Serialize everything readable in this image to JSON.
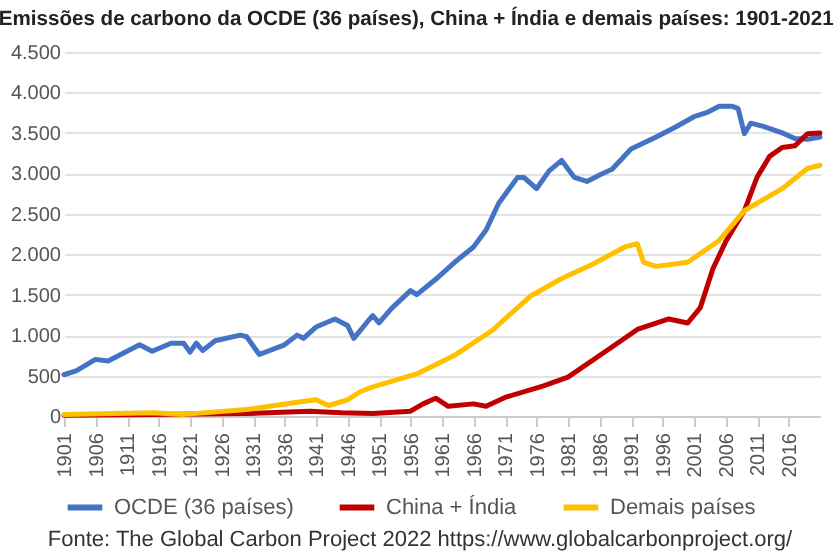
{
  "chart_data": {
    "type": "line",
    "title": "Emissões de carbono da OCDE (36 países), China + Índia e demais países: 1901-2021",
    "annotations": [
      "Fonte: The Global Carbon Project 2022 https://www.globalcarbonproject.org/"
    ],
    "xlim": [
      1901,
      2021
    ],
    "xticks": [
      1901,
      1906,
      1911,
      1916,
      1921,
      1926,
      1931,
      1936,
      1941,
      1946,
      1951,
      1956,
      1961,
      1966,
      1971,
      1976,
      1981,
      1986,
      1991,
      1996,
      2001,
      2006,
      2011,
      2016
    ],
    "ylim": [
      0,
      4500
    ],
    "yticks": [
      0,
      {
        "value": 500,
        "label": "500"
      },
      {
        "value": 1000,
        "label": "1.000"
      },
      {
        "value": 1500,
        "label": "1.500"
      },
      {
        "value": 2000,
        "label": "2.000"
      },
      {
        "value": 2500,
        "label": "2.500"
      },
      {
        "value": 3000,
        "label": "3.000"
      },
      {
        "value": 3500,
        "label": "3.500"
      },
      {
        "value": 4000,
        "label": "4.000"
      },
      {
        "value": 4500,
        "label": "4.500"
      }
    ],
    "grid": "y",
    "legend": "bottom",
    "marker": "none",
    "line_style": "solid",
    "series": [
      {
        "name": "OCDE (36 países)",
        "color": "#4472c4",
        "x": [
          1901,
          1903,
          1906,
          1908,
          1910,
          1913,
          1915,
          1918,
          1920,
          1921,
          1922,
          1923,
          1925,
          1929,
          1930,
          1932,
          1936,
          1938,
          1939,
          1941,
          1944,
          1946,
          1947,
          1949,
          1950,
          1951,
          1953,
          1956,
          1957,
          1960,
          1963,
          1966,
          1968,
          1970,
          1973,
          1974,
          1976,
          1978,
          1980,
          1982,
          1984,
          1986,
          1988,
          1991,
          1995,
          1998,
          2001,
          2003,
          2005,
          2007,
          2008,
          2009,
          2010,
          2012,
          2015,
          2017,
          2019,
          2021
        ],
        "values": [
          510,
          560,
          700,
          680,
          760,
          880,
          800,
          900,
          900,
          790,
          900,
          810,
          930,
          1000,
          980,
          760,
          880,
          1000,
          960,
          1100,
          1200,
          1120,
          960,
          1150,
          1240,
          1150,
          1330,
          1550,
          1500,
          1690,
          1900,
          2090,
          2300,
          2630,
          2950,
          2950,
          2810,
          3030,
          3160,
          2950,
          2900,
          2980,
          3050,
          3300,
          3450,
          3570,
          3700,
          3750,
          3830,
          3830,
          3800,
          3490,
          3620,
          3580,
          3500,
          3430,
          3420,
          3450
        ]
      },
      {
        "name": "China + Índia",
        "color": "#c00000",
        "x": [
          1901,
          1915,
          1930,
          1940,
          1945,
          1950,
          1956,
          1958,
          1960,
          1962,
          1966,
          1968,
          1971,
          1977,
          1981,
          1987,
          1992,
          1997,
          2000,
          2002,
          2004,
          2006,
          2009,
          2011,
          2013,
          2015,
          2017,
          2019,
          2021
        ],
        "values": [
          10,
          20,
          30,
          60,
          40,
          30,
          60,
          150,
          220,
          120,
          150,
          120,
          230,
          370,
          480,
          800,
          1070,
          1200,
          1150,
          1340,
          1820,
          2150,
          2540,
          2950,
          3210,
          3320,
          3340,
          3490,
          3500
        ]
      },
      {
        "name": "Demais países",
        "color": "#ffc000",
        "x": [
          1901,
          1915,
          1920,
          1930,
          1938,
          1941,
          1943,
          1946,
          1948,
          1950,
          1957,
          1963,
          1969,
          1975,
          1980,
          1985,
          1990,
          1992,
          1993,
          1995,
          2000,
          2005,
          2009,
          2015,
          2019,
          2021
        ],
        "values": [
          20,
          40,
          20,
          80,
          170,
          200,
          130,
          200,
          300,
          360,
          520,
          750,
          1060,
          1480,
          1700,
          1880,
          2090,
          2130,
          1900,
          1850,
          1900,
          2170,
          2540,
          2810,
          3060,
          3100
        ]
      }
    ]
  }
}
